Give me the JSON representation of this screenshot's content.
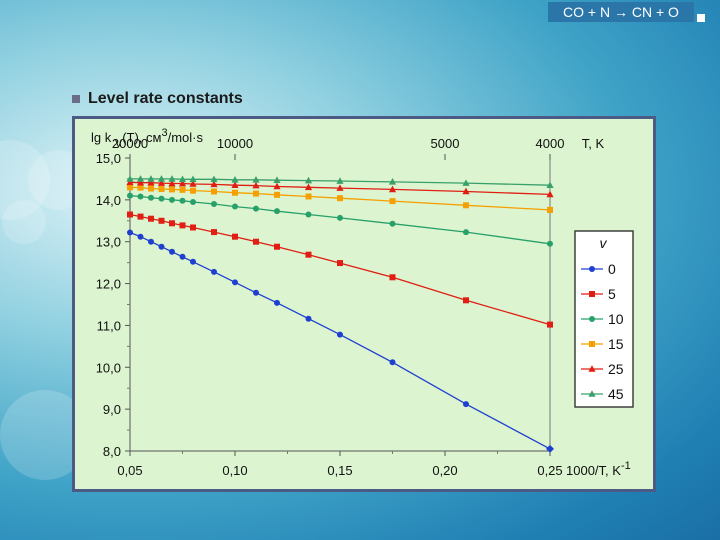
{
  "slide": {
    "header": "CO + N → CN + O",
    "heading": "Level rate constants"
  },
  "chart_data": {
    "type": "line",
    "ylabel": "lg k",
    "ylabel_sub": "V",
    "ylabel_rest": "(T), см",
    "ylabel_sup": "3",
    "ylabel_tail": "/mol·s",
    "xlabel": "1000/T, K",
    "xlabel_sup": "-1",
    "top_axis_label": "T, K",
    "xlim": [
      0.05,
      0.25
    ],
    "ylim": [
      8.0,
      15.0
    ],
    "x_ticks": [
      0.05,
      0.1,
      0.15,
      0.2,
      0.25
    ],
    "x_tick_labels": [
      "0,05",
      "0,10",
      "0,15",
      "0,20",
      "0,25"
    ],
    "y_ticks": [
      8,
      9,
      10,
      11,
      12,
      13,
      14,
      15
    ],
    "y_tick_labels": [
      "8,0",
      "9,0",
      "10,0",
      "11,0",
      "12,0",
      "13,0",
      "14,0",
      "15,0"
    ],
    "top_ticks": [
      0.05,
      0.1,
      0.2,
      0.25
    ],
    "top_tick_labels": [
      "20000",
      "10000",
      "5000",
      "4000"
    ],
    "legend_title": "v",
    "legend_position": "right",
    "x": [
      0.05,
      0.055,
      0.06,
      0.065,
      0.07,
      0.075,
      0.08,
      0.09,
      0.1,
      0.11,
      0.12,
      0.135,
      0.15,
      0.175,
      0.21,
      0.25
    ],
    "series": [
      {
        "name": "0",
        "color": "#1f3fd0",
        "marker": "circle",
        "values": [
          13.22,
          13.12,
          13.0,
          12.88,
          12.76,
          12.64,
          12.52,
          12.28,
          12.03,
          11.78,
          11.54,
          11.16,
          10.78,
          10.12,
          9.12,
          8.05
        ]
      },
      {
        "name": "5",
        "color": "#e01e14",
        "marker": "square",
        "values": [
          13.65,
          13.6,
          13.55,
          13.5,
          13.44,
          13.39,
          13.34,
          13.23,
          13.12,
          13.0,
          12.88,
          12.69,
          12.49,
          12.15,
          11.6,
          11.02
        ]
      },
      {
        "name": "10",
        "color": "#28a06a",
        "marker": "circle",
        "values": [
          14.1,
          14.08,
          14.05,
          14.03,
          14.0,
          13.98,
          13.95,
          13.9,
          13.84,
          13.79,
          13.73,
          13.65,
          13.57,
          13.43,
          13.23,
          12.95
        ]
      },
      {
        "name": "15",
        "color": "#f5a000",
        "marker": "square",
        "values": [
          14.3,
          14.29,
          14.27,
          14.26,
          14.25,
          14.24,
          14.22,
          14.2,
          14.17,
          14.15,
          14.12,
          14.08,
          14.04,
          13.97,
          13.87,
          13.76
        ]
      },
      {
        "name": "25",
        "color": "#e01e14",
        "marker": "triangle",
        "values": [
          14.42,
          14.41,
          14.41,
          14.4,
          14.39,
          14.39,
          14.38,
          14.37,
          14.35,
          14.34,
          14.32,
          14.3,
          14.28,
          14.25,
          14.2,
          14.13
        ]
      },
      {
        "name": "45",
        "color": "#3aa06a",
        "marker": "triangle",
        "values": [
          14.5,
          14.5,
          14.5,
          14.5,
          14.5,
          14.49,
          14.49,
          14.49,
          14.48,
          14.48,
          14.47,
          14.46,
          14.45,
          14.43,
          14.4,
          14.35
        ]
      }
    ]
  }
}
